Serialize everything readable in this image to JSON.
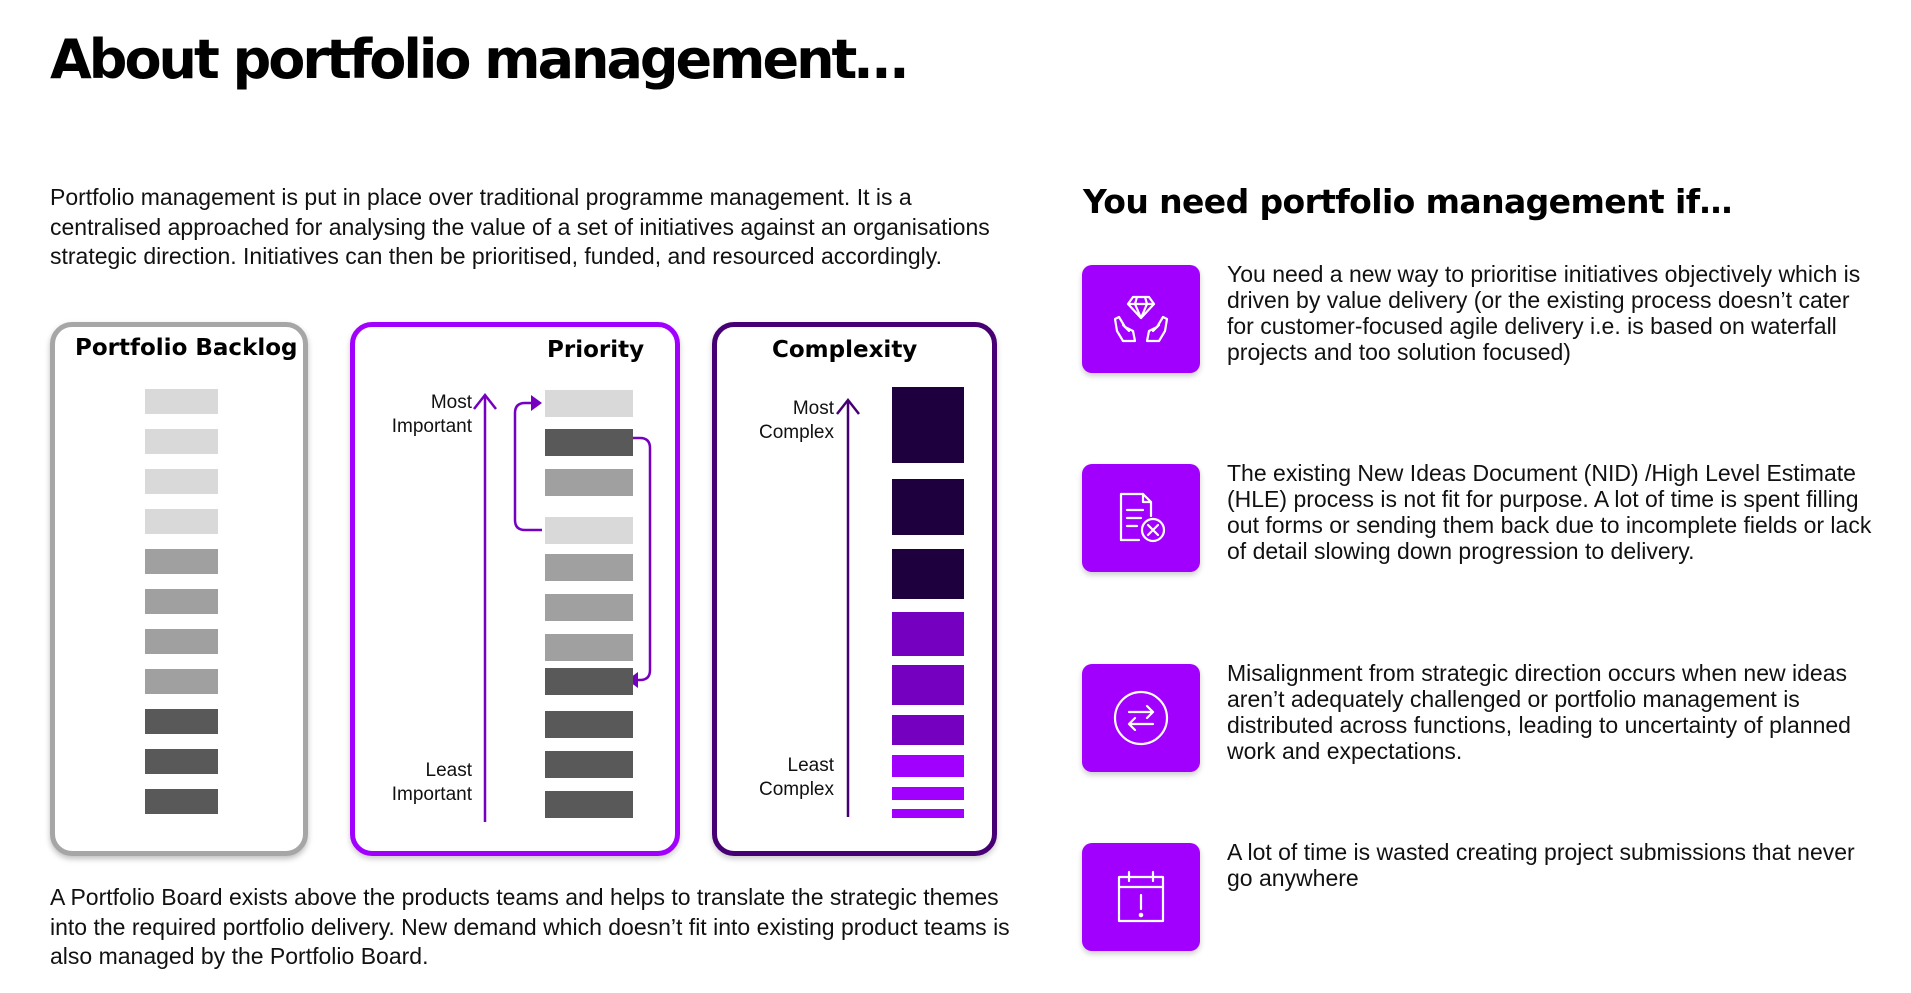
{
  "title": "About portfolio management…",
  "intro": "Portfolio management is put in place over traditional programme management. It is a centralised approached for analysing the value of a set of initiatives against an organisations strategic direction. Initiatives can then be prioritised, funded, and resourced accordingly.",
  "outro": "A Portfolio Board exists above the products teams and helps to translate the strategic themes into the required portfolio delivery. New demand which doesn’t fit into existing product teams is also managed by the Portfolio Board.",
  "panels": {
    "backlog": {
      "title": "Portfolio Backlog",
      "blocks": [
        "light",
        "light",
        "light",
        "light",
        "mid",
        "mid",
        "mid",
        "mid",
        "dark",
        "dark",
        "dark"
      ]
    },
    "priority": {
      "title": "Priority",
      "top_label": "Most\nImportant",
      "bottom_label": "Least\nImportant",
      "blocks": [
        "light",
        "dark",
        "mid",
        "light",
        "mid",
        "mid",
        "mid",
        "dark",
        "dark",
        "dark",
        "dark"
      ]
    },
    "complexity": {
      "title": "Complexity",
      "top_label": "Most\nComplex",
      "bottom_label": "Least\nComplex",
      "blocks": [
        "dark",
        "dark",
        "dark",
        "mid",
        "mid",
        "mid",
        "light",
        "light",
        "light"
      ]
    }
  },
  "right": {
    "title": "You need portfolio management if…",
    "reasons": [
      {
        "icon": "hands-diamond-icon",
        "text": "You need a new way to prioritise initiatives objectively which is driven by value delivery (or the existing process doesn’t cater for customer-focused agile delivery i.e. is based on waterfall projects and too solution focused)"
      },
      {
        "icon": "document-cancel-icon",
        "text": "The existing New Ideas Document (NID) /High Level Estimate (HLE) process is not fit for purpose. A lot of time is spent filling out forms or sending them back due to incomplete fields or lack of detail slowing down progression to delivery."
      },
      {
        "icon": "exchange-arrows-icon",
        "text": "Misalignment from strategic direction occurs when new ideas aren’t adequately challenged or portfolio management is distributed across functions, leading to uncertainty of planned work and expectations."
      },
      {
        "icon": "calendar-alert-icon",
        "text": "A lot of time is wasted creating project submissions that never go anywhere"
      }
    ]
  },
  "colors": {
    "accent": "#a100ff",
    "dark_purple": "#460073",
    "deep_purple": "#1f003f",
    "mid_purple": "#7500c0",
    "grey_light": "#d9d9d9",
    "grey_mid": "#a0a0a0",
    "grey_dark": "#595959"
  }
}
